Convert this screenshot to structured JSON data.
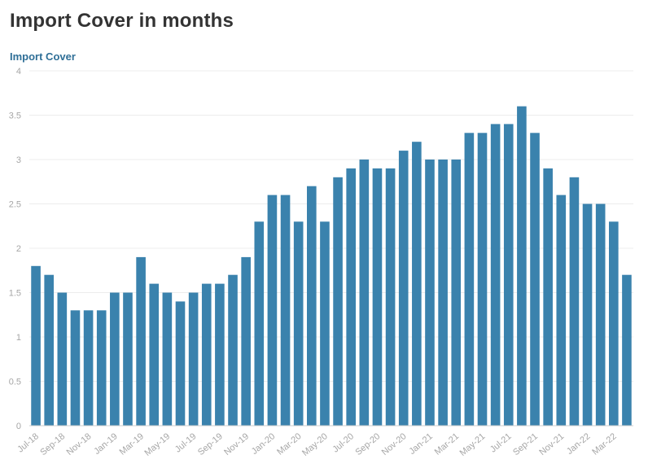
{
  "header": {
    "title": "Import Cover in months",
    "subtitle": "Import Cover"
  },
  "colors": {
    "bar": "#3a82ad",
    "grid": "#ececec",
    "axis": "#cccccc",
    "tick": "#a6a6a6"
  },
  "chart_data": {
    "type": "bar",
    "title": "Import Cover in months",
    "subtitle": "Import Cover",
    "xlabel": "",
    "ylabel": "",
    "ylim": [
      0,
      4
    ],
    "yticks": [
      0,
      0.5,
      1,
      1.5,
      2,
      2.5,
      3,
      3.5,
      4
    ],
    "grid": true,
    "categories": [
      "Jul-18",
      "Aug-18",
      "Sep-18",
      "Oct-18",
      "Nov-18",
      "Dec-18",
      "Jan-19",
      "Feb-19",
      "Mar-19",
      "Apr-19",
      "May-19",
      "Jun-19",
      "Jul-19",
      "Aug-19",
      "Sep-19",
      "Oct-19",
      "Nov-19",
      "Dec-19",
      "Jan-20",
      "Feb-20",
      "Mar-20",
      "Apr-20",
      "May-20",
      "Jun-20",
      "Jul-20",
      "Aug-20",
      "Sep-20",
      "Oct-20",
      "Nov-20",
      "Dec-20",
      "Jan-21",
      "Feb-21",
      "Mar-21",
      "Apr-21",
      "May-21",
      "Jun-21",
      "Jul-21",
      "Aug-21",
      "Sep-21",
      "Oct-21",
      "Nov-21",
      "Dec-21",
      "Jan-22",
      "Feb-22",
      "Mar-22",
      "Apr-22"
    ],
    "tick_labels": [
      "Jul-18",
      "",
      "Sep-18",
      "",
      "Nov-18",
      "",
      "Jan-19",
      "",
      "Mar-19",
      "",
      "May-19",
      "",
      "Jul-19",
      "",
      "Sep-19",
      "",
      "Nov-19",
      "",
      "Jan-20",
      "",
      "Mar-20",
      "",
      "May-20",
      "",
      "Jul-20",
      "",
      "Sep-20",
      "",
      "Nov-20",
      "",
      "Jan-21",
      "",
      "Mar-21",
      "",
      "May-21",
      "",
      "Jul-21",
      "",
      "Sep-21",
      "",
      "Nov-21",
      "",
      "Jan-22",
      "",
      "Mar-22",
      ""
    ],
    "values": [
      1.8,
      1.7,
      1.5,
      1.3,
      1.3,
      1.3,
      1.5,
      1.5,
      1.9,
      1.6,
      1.5,
      1.4,
      1.5,
      1.6,
      1.6,
      1.7,
      1.9,
      2.3,
      2.6,
      2.6,
      2.3,
      2.7,
      2.3,
      2.8,
      2.9,
      3.0,
      2.9,
      2.9,
      3.1,
      3.2,
      3.0,
      3.0,
      3.0,
      3.3,
      3.3,
      3.4,
      3.4,
      3.6,
      3.3,
      2.9,
      2.6,
      2.8,
      2.5,
      2.5,
      2.3,
      1.7
    ]
  }
}
